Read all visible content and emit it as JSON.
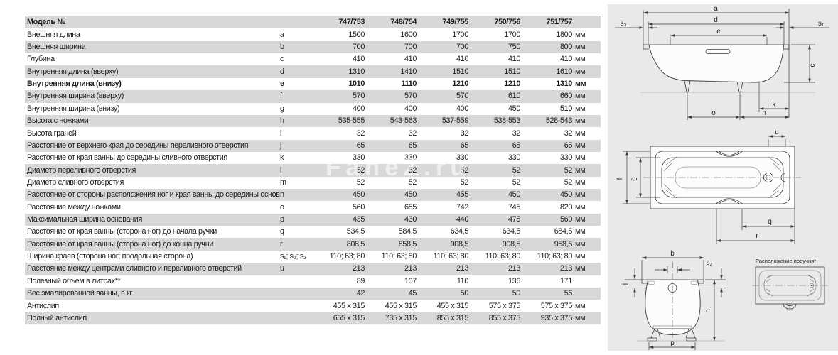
{
  "colors": {
    "stripe": "#d8d8d8",
    "panel": "#e9e9e9",
    "text": "#1b1b1b",
    "line": "#3b3b3b"
  },
  "watermark": {
    "text": "FaneZ.ru"
  },
  "table": {
    "header": {
      "label": "Модель №",
      "letter": "",
      "values": [
        "747/753",
        "748/754",
        "749/755",
        "750/756",
        "751/757"
      ],
      "unit": ""
    },
    "rows": [
      {
        "label": "Внешняя длина",
        "letter": "a",
        "values": [
          "1500",
          "1600",
          "1700",
          "1700",
          "1800"
        ],
        "unit": "мм"
      },
      {
        "label": "Внешняя ширина",
        "letter": "b",
        "values": [
          "700",
          "700",
          "700",
          "750",
          "800"
        ],
        "unit": "мм"
      },
      {
        "label": "Глубина",
        "letter": "c",
        "values": [
          "410",
          "410",
          "410",
          "410",
          "410"
        ],
        "unit": "мм"
      },
      {
        "label": "Внутренняя длина (вверху)",
        "letter": "d",
        "values": [
          "1310",
          "1410",
          "1510",
          "1510",
          "1610"
        ],
        "unit": "мм"
      },
      {
        "label": "Внутренняя длина (внизу)",
        "letter": "e",
        "values": [
          "1010",
          "1110",
          "1210",
          "1210",
          "1310"
        ],
        "unit": "мм",
        "bold": true
      },
      {
        "label": "Внутренняя ширина (вверху)",
        "letter": "f",
        "values": [
          "570",
          "570",
          "570",
          "610",
          "660"
        ],
        "unit": "мм"
      },
      {
        "label": "Внутренняя ширина (внизу)",
        "letter": "g",
        "values": [
          "400",
          "400",
          "400",
          "450",
          "510"
        ],
        "unit": "мм"
      },
      {
        "label": "Высота с ножками",
        "letter": "h",
        "values": [
          "535-555",
          "543-563",
          "537-559",
          "538-553",
          "528-543"
        ],
        "unit": "мм"
      },
      {
        "label": "Высота граней",
        "letter": "i",
        "values": [
          "32",
          "32",
          "32",
          "32",
          "32"
        ],
        "unit": "мм"
      },
      {
        "label": "Расстояние от верхнего края до середины переливного отверстия",
        "letter": "j",
        "values": [
          "65",
          "65",
          "65",
          "65",
          "65"
        ],
        "unit": "мм"
      },
      {
        "label": "Расстояние от края ванны до середины сливного отверстия",
        "letter": "k",
        "values": [
          "330",
          "330",
          "330",
          "330",
          "330"
        ],
        "unit": "мм"
      },
      {
        "label": "Диаметр переливного отверстия",
        "letter": "l",
        "values": [
          "52",
          "52",
          "52",
          "52",
          "52"
        ],
        "unit": "мм"
      },
      {
        "label": "Диаметр сливного отверстия",
        "letter": "m",
        "values": [
          "52",
          "52",
          "52",
          "52",
          "52"
        ],
        "unit": "мм"
      },
      {
        "label": "Расстояние от стороны расположения ног и края ванны до середины основания",
        "letter": "n",
        "values": [
          "450",
          "450",
          "455",
          "450",
          "450"
        ],
        "unit": "мм"
      },
      {
        "label": "Расстояние между ножками",
        "letter": "o",
        "values": [
          "560",
          "655",
          "742",
          "745",
          "820"
        ],
        "unit": "мм"
      },
      {
        "label": "Максимальная ширина основания",
        "letter": "p",
        "values": [
          "435",
          "430",
          "440",
          "475",
          "560"
        ],
        "unit": "мм"
      },
      {
        "label": "Расстояние от края ванны (сторона ног) до начала ручки",
        "letter": "q",
        "values": [
          "534,5",
          "584,5",
          "634,5",
          "634,5",
          "684,5"
        ],
        "unit": "мм"
      },
      {
        "label": "Расстояние от края ванны (сторона ног) до конца ручни",
        "letter": "r",
        "values": [
          "808,5",
          "858,5",
          "908,5",
          "908,5",
          "958,5"
        ],
        "unit": "мм"
      },
      {
        "label": "Ширина краев (сторона ног; продольная сторона)",
        "letter": "s₁; s₂; s₃",
        "values": [
          "110; 63; 80",
          "110; 63; 80",
          "110; 63; 80",
          "110; 63; 80",
          "110; 63; 80"
        ],
        "unit": "мм"
      },
      {
        "label": "Расстояние между центрами сливного и переливного отверстий",
        "letter": "u",
        "values": [
          "213",
          "213",
          "213",
          "213",
          "213"
        ],
        "unit": "мм"
      },
      {
        "label": "Полезный объем в литрах**",
        "letter": "",
        "values": [
          "89",
          "107",
          "110",
          "136",
          "171"
        ],
        "unit": ""
      },
      {
        "label": "Вес эмалированной ванны, в кг",
        "letter": "",
        "values": [
          "42",
          "45",
          "50",
          "50",
          "56"
        ],
        "unit": ""
      },
      {
        "label": "Антислип",
        "letter": "",
        "values": [
          "455 x 315",
          "455 x 315",
          "455 x 315",
          "575 x 375",
          "575 x 375"
        ],
        "unit": "мм"
      },
      {
        "label": "Полный антислип",
        "letter": "",
        "values": [
          "655 x 315",
          "735 x 315",
          "855 x 315",
          "855 x 375",
          "935 x 375"
        ],
        "unit": "мм"
      }
    ]
  },
  "diagrams": {
    "labels": {
      "a": "a",
      "b": "b",
      "c": "c",
      "d": "d",
      "e": "e",
      "f": "f",
      "g": "g",
      "h": "h",
      "j": "j",
      "k": "k",
      "l": "l",
      "n": "n",
      "o": "o",
      "p": "p",
      "q": "q",
      "r": "r",
      "u": "u",
      "s1": "s₁",
      "s2": "s₂",
      "s3": "s₃"
    },
    "handle_caption": "Расположение поручня*"
  }
}
